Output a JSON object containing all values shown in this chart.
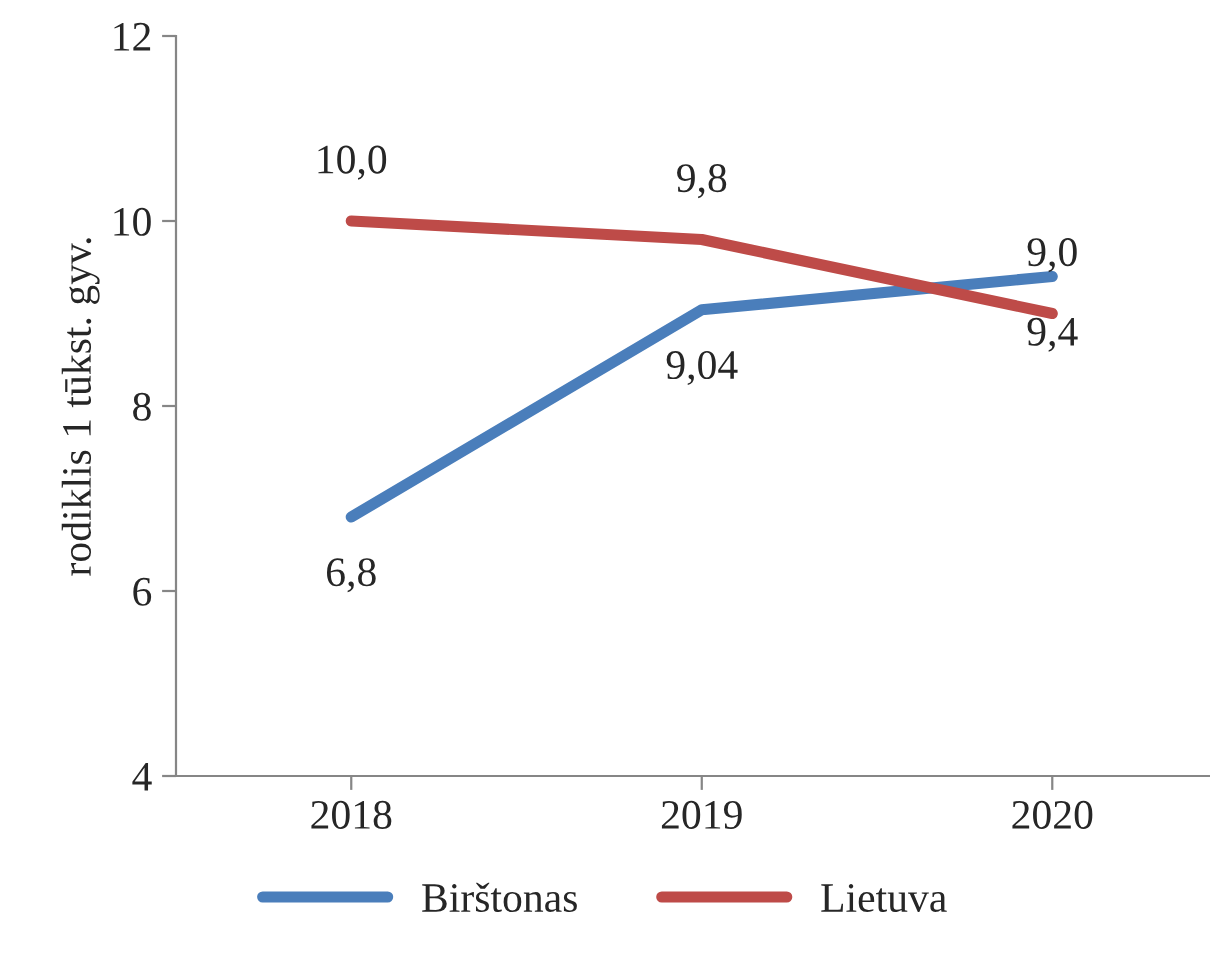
{
  "chart_data": {
    "type": "line",
    "ylabel": "rodiklis 1 tūkst. gyv.",
    "categories": [
      "2018",
      "2019",
      "2020"
    ],
    "series": [
      {
        "name": "Birštonas",
        "color": "#4a7ebb",
        "values": [
          6.8,
          9.04,
          9.4
        ],
        "value_labels": [
          "6,8",
          "9,04",
          "9,4"
        ]
      },
      {
        "name": "Lietuva",
        "color": "#be4b48",
        "values": [
          10.0,
          9.8,
          9.0
        ],
        "value_labels": [
          "10,0",
          "9,8",
          "9,0"
        ]
      }
    ],
    "ylim": [
      4,
      12
    ],
    "yticks": [
      4,
      6,
      8,
      10,
      12
    ],
    "grid": false,
    "legend": "bottom",
    "marker": "none",
    "line_style": "solid"
  }
}
